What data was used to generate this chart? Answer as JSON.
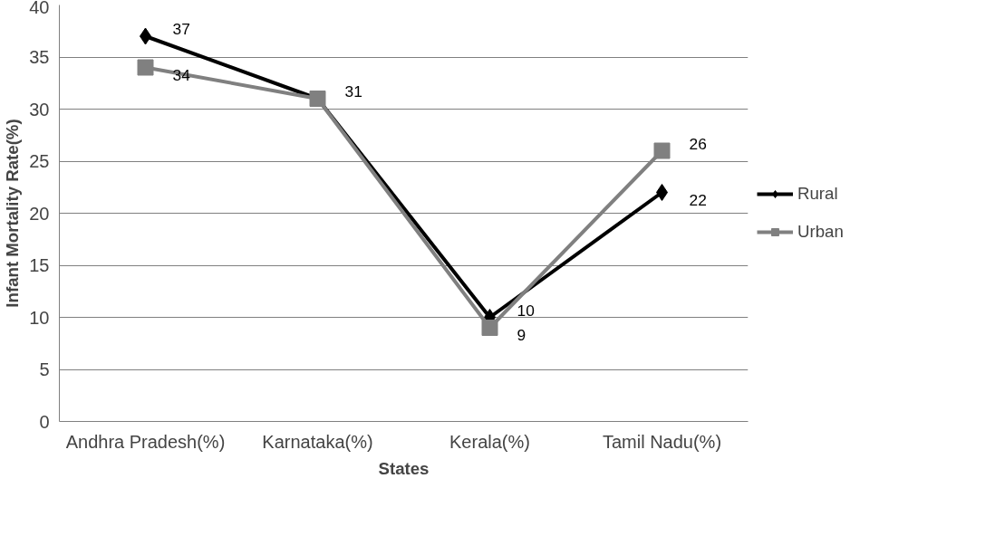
{
  "chart_data": {
    "type": "line",
    "xlabel": "States",
    "ylabel": "Infant Mortality Rate(%)",
    "categories": [
      "Andhra Pradesh(%)",
      "Karnataka(%)",
      "Kerala(%)",
      "Tamil Nadu(%)"
    ],
    "series": [
      {
        "name": "Rural",
        "color": "#000000",
        "marker": "diamond",
        "values": [
          37,
          31,
          10,
          22
        ],
        "value_labels": [
          "37",
          "31",
          "10",
          "22"
        ]
      },
      {
        "name": "Urban",
        "color": "#808080",
        "marker": "square",
        "values": [
          34,
          31,
          9,
          26
        ],
        "value_labels": [
          "34",
          null,
          "9",
          "26"
        ]
      }
    ],
    "ylim": [
      0,
      40
    ],
    "yticks": [
      0,
      5,
      10,
      15,
      20,
      25,
      30,
      35,
      40
    ],
    "grid": "y",
    "legend": "right",
    "line_style": "solid"
  }
}
